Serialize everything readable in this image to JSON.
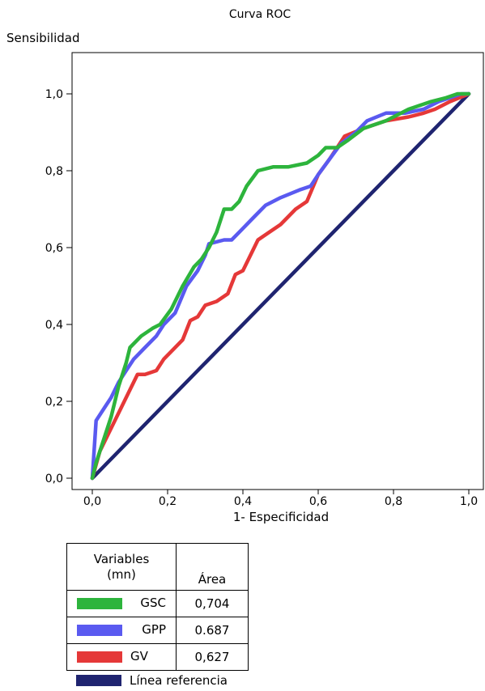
{
  "chart_data": {
    "type": "line",
    "title": "Curva ROC",
    "ylabel": "Sensibilidad",
    "xlabel": "1- Especificidad",
    "xlim": [
      0,
      1
    ],
    "ylim": [
      0,
      1
    ],
    "xticks": [
      "0,0",
      "0,2",
      "0,4",
      "0,6",
      "0,8",
      "1,0"
    ],
    "yticks": [
      "0,0",
      "0,2",
      "0,4",
      "0,6",
      "0,8",
      "1,0"
    ],
    "legend_header": {
      "variables": "Variables",
      "variables_unit": "(mn)",
      "area": "Área"
    },
    "series": [
      {
        "name": "GSC",
        "color": "#2db43c",
        "area": "0,704",
        "x": [
          0,
          0.01,
          0.03,
          0.05,
          0.07,
          0.09,
          0.1,
          0.13,
          0.16,
          0.18,
          0.21,
          0.24,
          0.27,
          0.29,
          0.31,
          0.33,
          0.35,
          0.37,
          0.39,
          0.41,
          0.44,
          0.48,
          0.52,
          0.57,
          0.6,
          0.62,
          0.65,
          0.68,
          0.72,
          0.78,
          0.84,
          0.87,
          0.9,
          0.94,
          0.97,
          1.0
        ],
        "y": [
          0,
          0.04,
          0.1,
          0.16,
          0.24,
          0.3,
          0.34,
          0.37,
          0.39,
          0.4,
          0.44,
          0.5,
          0.55,
          0.57,
          0.6,
          0.64,
          0.7,
          0.7,
          0.72,
          0.76,
          0.8,
          0.81,
          0.81,
          0.82,
          0.84,
          0.86,
          0.86,
          0.88,
          0.91,
          0.93,
          0.96,
          0.97,
          0.98,
          0.99,
          1.0,
          1.0
        ]
      },
      {
        "name": "GPP",
        "color": "#5a5af0",
        "area": "0.687",
        "x": [
          0,
          0.01,
          0.03,
          0.05,
          0.07,
          0.09,
          0.11,
          0.14,
          0.17,
          0.19,
          0.22,
          0.25,
          0.28,
          0.3,
          0.31,
          0.35,
          0.37,
          0.4,
          0.43,
          0.46,
          0.5,
          0.55,
          0.58,
          0.6,
          0.63,
          0.66,
          0.7,
          0.73,
          0.78,
          0.83,
          0.88,
          0.92,
          0.95,
          0.98,
          1.0
        ],
        "y": [
          0,
          0.15,
          0.18,
          0.21,
          0.25,
          0.28,
          0.31,
          0.34,
          0.37,
          0.4,
          0.43,
          0.5,
          0.54,
          0.58,
          0.61,
          0.62,
          0.62,
          0.65,
          0.68,
          0.71,
          0.73,
          0.75,
          0.76,
          0.79,
          0.83,
          0.87,
          0.9,
          0.93,
          0.95,
          0.95,
          0.96,
          0.98,
          0.99,
          1.0,
          1.0
        ]
      },
      {
        "name": "GV",
        "color": "#e53838",
        "area": "0,627",
        "x": [
          0,
          0.02,
          0.04,
          0.06,
          0.08,
          0.1,
          0.12,
          0.14,
          0.17,
          0.19,
          0.21,
          0.24,
          0.26,
          0.28,
          0.3,
          0.33,
          0.36,
          0.38,
          0.4,
          0.42,
          0.44,
          0.47,
          0.5,
          0.54,
          0.57,
          0.6,
          0.63,
          0.67,
          0.72,
          0.78,
          0.84,
          0.88,
          0.91,
          0.95,
          1.0
        ],
        "y": [
          0,
          0.07,
          0.11,
          0.15,
          0.19,
          0.23,
          0.27,
          0.27,
          0.28,
          0.31,
          0.33,
          0.36,
          0.41,
          0.42,
          0.45,
          0.46,
          0.48,
          0.53,
          0.54,
          0.58,
          0.62,
          0.64,
          0.66,
          0.7,
          0.72,
          0.79,
          0.83,
          0.89,
          0.91,
          0.93,
          0.94,
          0.95,
          0.96,
          0.98,
          1.0
        ]
      },
      {
        "name": "Línea referencia",
        "color": "#1f2470",
        "x": [
          0,
          1
        ],
        "y": [
          0,
          1
        ]
      }
    ],
    "grid": false,
    "legend_position": "bottom"
  }
}
